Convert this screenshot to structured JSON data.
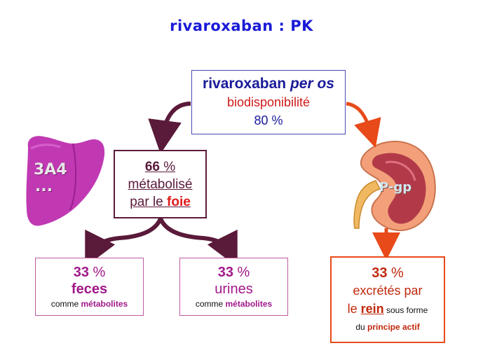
{
  "title": "rivaroxaban : PK",
  "drug_box": {
    "line1_text": "rivaroxaban ",
    "line1_italic": "per os",
    "line2": "biodisponibilité",
    "line3": "80 %"
  },
  "metabolism_box": {
    "num": "66",
    "pct_sign": " %",
    "line2": "métabolisé ",
    "line3_prefix": "par le ",
    "line3_organ": "foie"
  },
  "feces_box": {
    "num": "33",
    "pct_sign": " %",
    "label": "feces",
    "sub_prefix": "comme ",
    "sub_bold": "métabolites"
  },
  "urine_box": {
    "num": "33",
    "pct_sign": " %",
    "label": "urines",
    "sub_prefix": "comme ",
    "sub_bold": "métabolites"
  },
  "rein_box": {
    "num": "33",
    "pct_sign": " %",
    "line2": "excrétés par",
    "line3_prefix": "le ",
    "line3_organ": "rein",
    "line3_suffix": " sous forme",
    "line4_prefix": "du ",
    "line4_bold": "principe actif"
  },
  "liver": {
    "label": "3A4",
    "dots": "..."
  },
  "kidney": {
    "label": "P-gp"
  },
  "colors": {
    "title": "#1a1ad8",
    "metabolism": "#5a1a3a",
    "renal": "#e84a1a",
    "magenta": "#a0188a"
  }
}
